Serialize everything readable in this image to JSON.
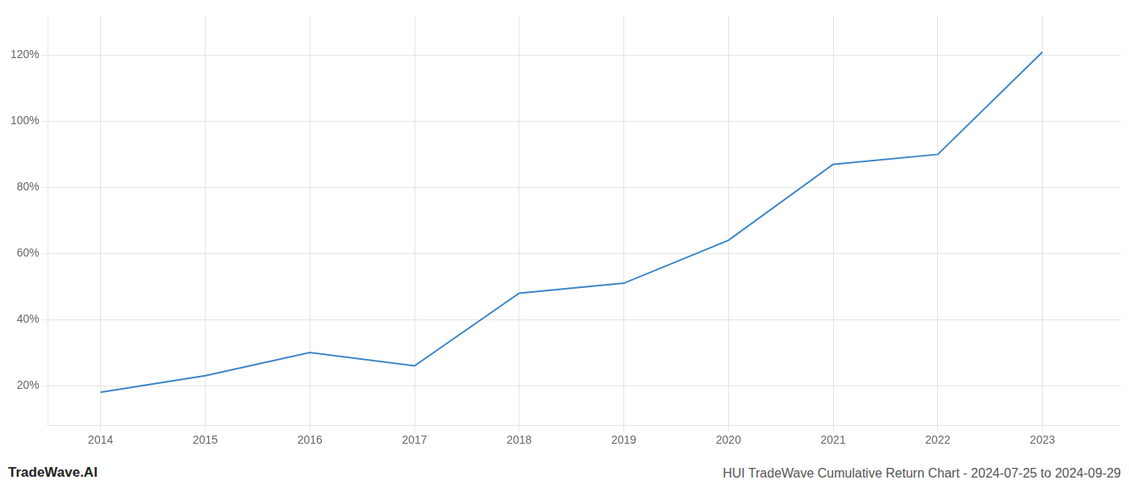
{
  "chart_data": {
    "type": "line",
    "title": "HUI TradeWave Cumulative Return Chart - 2024-07-25 to 2024-09-29",
    "annotations": [
      "TradeWave.AI"
    ],
    "x": [
      2014,
      2015,
      2016,
      2017,
      2018,
      2019,
      2020,
      2021,
      2022,
      2023
    ],
    "values": [
      18,
      23,
      30,
      26,
      48,
      51,
      64,
      87,
      90,
      121
    ],
    "color": "#3a86c8",
    "xlim": [
      2013.5,
      2023.75
    ],
    "xticks": [
      2014,
      2015,
      2016,
      2017,
      2018,
      2019,
      2020,
      2021,
      2022,
      2023
    ],
    "ylim": [
      8,
      132
    ],
    "yticks": [
      {
        "value": 20,
        "label": "20%"
      },
      {
        "value": 40,
        "label": "40%"
      },
      {
        "value": 60,
        "label": "60%"
      },
      {
        "value": 80,
        "label": "80%"
      },
      {
        "value": 100,
        "label": "100%"
      },
      {
        "value": 120,
        "label": "120%"
      }
    ],
    "grid": true
  }
}
